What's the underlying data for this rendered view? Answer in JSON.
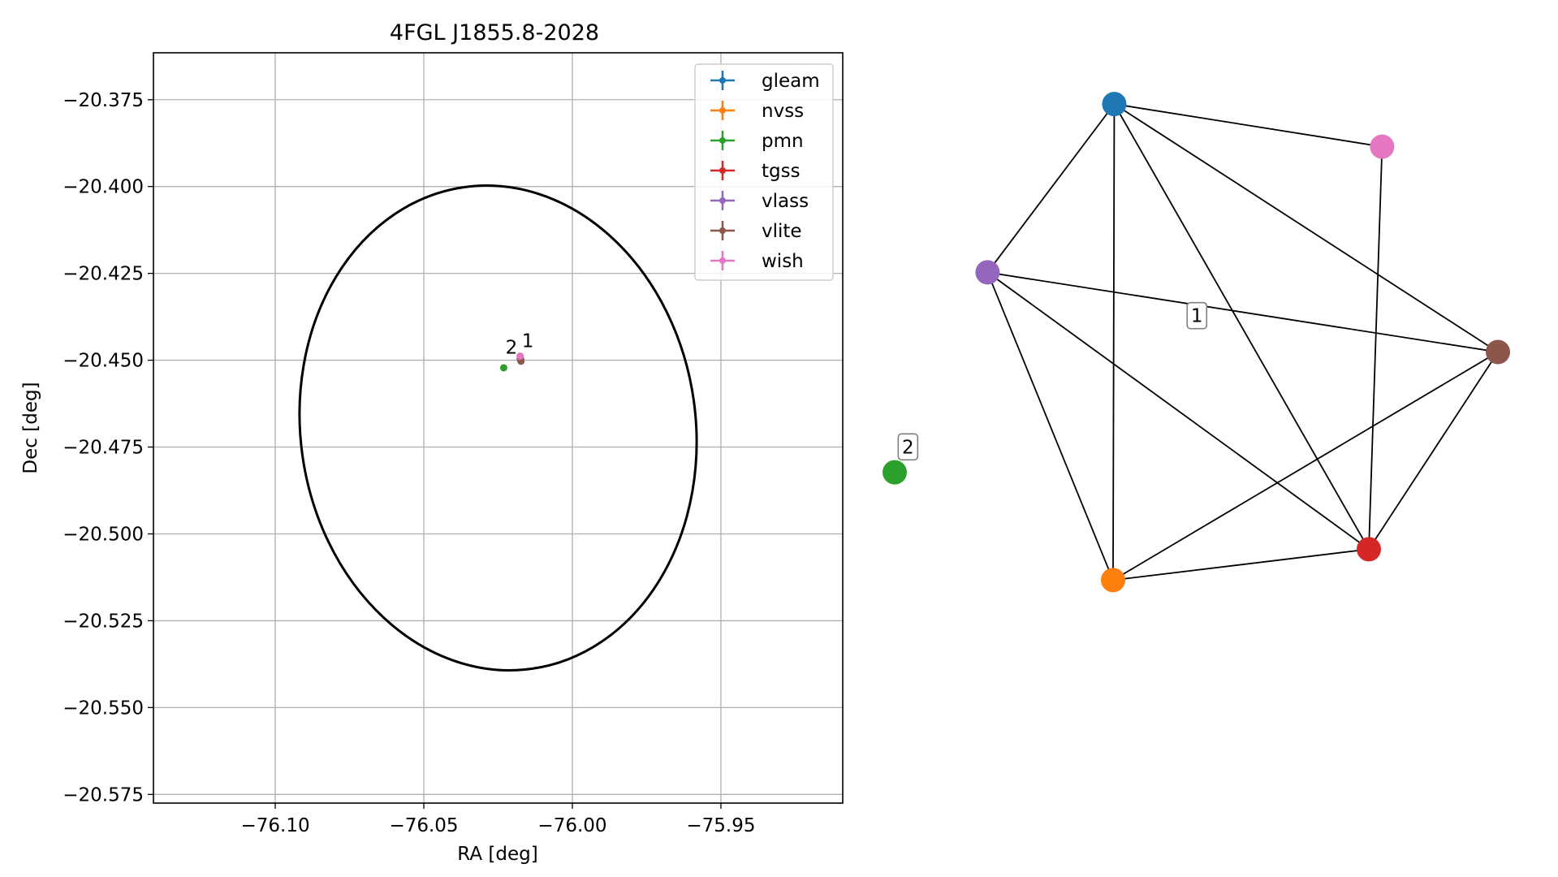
{
  "chart_data": [
    {
      "type": "scatter",
      "title": "4FGL J1855.8-2028",
      "xlabel": "RA [deg]",
      "ylabel": "Dec [deg]",
      "xlim": [
        -76.141,
        -75.909
      ],
      "ylim": [
        -20.5775,
        -20.3615
      ],
      "xticks": [
        -76.1,
        -76.05,
        -76.0,
        -75.95
      ],
      "xtick_labels": [
        "−76.10",
        "−76.05",
        "−76.00",
        "−75.95"
      ],
      "yticks": [
        -20.375,
        -20.4,
        -20.425,
        -20.45,
        -20.475,
        -20.5,
        -20.525,
        -20.55,
        -20.575
      ],
      "ytick_labels": [
        "−20.375",
        "−20.400",
        "−20.425",
        "−20.450",
        "−20.475",
        "−20.500",
        "−20.525",
        "−20.550",
        "−20.575"
      ],
      "grid": true,
      "legend_position": "top-right",
      "ellipse": {
        "center": [
          -76.025,
          -20.4695
        ],
        "semi_ra": 0.0665,
        "semi_dec": 0.07,
        "angle_deg": -8,
        "color": "#000000"
      },
      "series": [
        {
          "name": "gleam",
          "color": "#1f77b4",
          "points": [
            [
              -76.0175,
              -20.4495
            ]
          ]
        },
        {
          "name": "nvss",
          "color": "#ff7f0e",
          "points": [
            [
              -76.0175,
              -20.4497
            ]
          ]
        },
        {
          "name": "pmn",
          "color": "#2ca02c",
          "points": [
            [
              -76.0231,
              -20.4522
            ]
          ]
        },
        {
          "name": "tgss",
          "color": "#d62728",
          "points": [
            [
              -76.0174,
              -20.4498
            ]
          ]
        },
        {
          "name": "vlass",
          "color": "#9467bd",
          "points": [
            [
              -76.0176,
              -20.4496
            ]
          ]
        },
        {
          "name": "vlite",
          "color": "#8c564b",
          "points": [
            [
              -76.0173,
              -20.4503
            ]
          ]
        },
        {
          "name": "wish",
          "color": "#e377c2",
          "points": [
            [
              -76.0176,
              -20.4488
            ]
          ]
        }
      ],
      "annotations": [
        {
          "text": "2",
          "x": -76.0205,
          "y": -20.4481
        },
        {
          "text": "1",
          "x": -76.015,
          "y": -20.4462
        }
      ]
    },
    {
      "type": "network",
      "nodes": [
        {
          "id": "gleam",
          "color": "#1f77b4",
          "pos": [
            0.364,
            0.129
          ]
        },
        {
          "id": "wish",
          "color": "#e377c2",
          "pos": [
            0.808,
            0.191
          ]
        },
        {
          "id": "vlass",
          "color": "#9467bd",
          "pos": [
            0.154,
            0.374
          ]
        },
        {
          "id": "vlite",
          "color": "#8c564b",
          "pos": [
            1.0,
            0.49
          ]
        },
        {
          "id": "tgss",
          "color": "#d62728",
          "pos": [
            0.786,
            0.777
          ]
        },
        {
          "id": "nvss",
          "color": "#ff7f0e",
          "pos": [
            0.362,
            0.822
          ]
        },
        {
          "id": "pmn",
          "color": "#2ca02c",
          "pos": [
            0.0,
            0.665
          ]
        }
      ],
      "edges": [
        [
          "gleam",
          "wish"
        ],
        [
          "gleam",
          "vlass"
        ],
        [
          "gleam",
          "vlite"
        ],
        [
          "gleam",
          "tgss"
        ],
        [
          "gleam",
          "nvss"
        ],
        [
          "wish",
          "tgss"
        ],
        [
          "vlass",
          "vlite"
        ],
        [
          "vlass",
          "tgss"
        ],
        [
          "vlass",
          "nvss"
        ],
        [
          "vlite",
          "tgss"
        ],
        [
          "vlite",
          "nvss"
        ],
        [
          "tgss",
          "nvss"
        ]
      ],
      "cluster_labels": [
        {
          "text": "1",
          "pos": [
            0.501,
            0.437
          ]
        },
        {
          "text": "2",
          "pos": [
            0.022,
            0.628
          ]
        }
      ]
    }
  ]
}
